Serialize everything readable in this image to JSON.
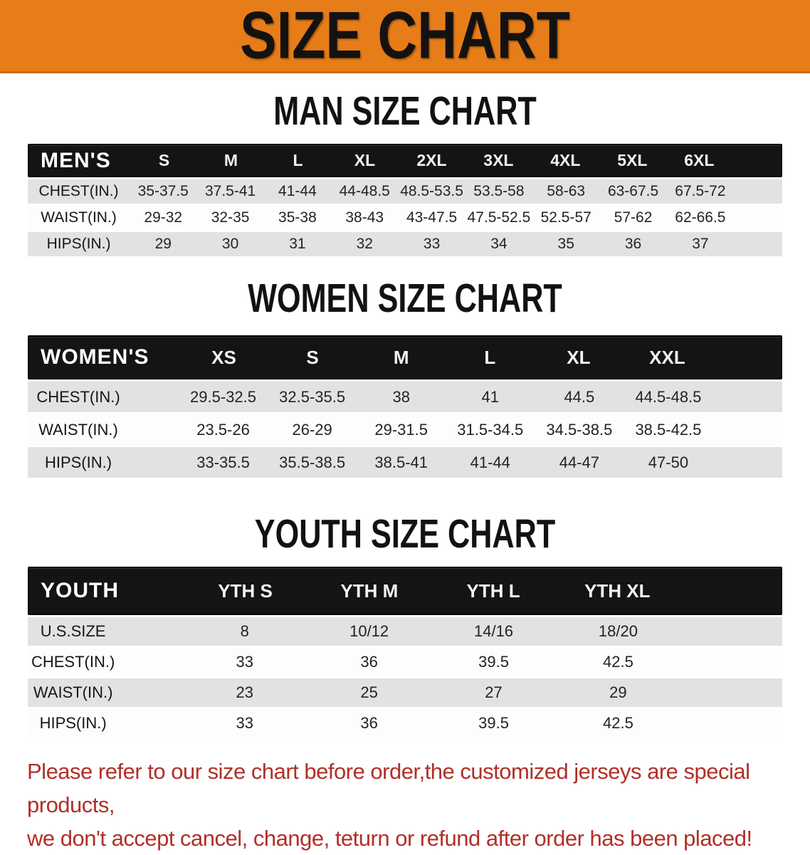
{
  "banner": {
    "title": "SIZE CHART"
  },
  "colors": {
    "banner_orange": "#e67d19",
    "table_header_black": "#151313",
    "row_gray": "#e2e2e2",
    "row_white": "#fdfdfd",
    "disclaimer_red": "#b03028"
  },
  "sections": [
    {
      "heading": "MAN SIZE CHART",
      "table": {
        "header_label": "MEN'S",
        "columns": [
          "S",
          "M",
          "L",
          "XL",
          "2XL",
          "3XL",
          "4XL",
          "5XL",
          "6XL"
        ],
        "rows": [
          {
            "label": "CHEST(IN.)",
            "values": [
              "35-37.5",
              "37.5-41",
              "41-44",
              "44-48.5",
              "48.5-53.5",
              "53.5-58",
              "58-63",
              "63-67.5",
              "67.5-72"
            ]
          },
          {
            "label": "WAIST(IN.)",
            "values": [
              "29-32",
              "32-35",
              "35-38",
              "38-43",
              "43-47.5",
              "47.5-52.5",
              "52.5-57",
              "57-62",
              "62-66.5"
            ]
          },
          {
            "label": "HIPS(IN.)",
            "values": [
              "29",
              "30",
              "31",
              "32",
              "33",
              "34",
              "35",
              "36",
              "37"
            ]
          }
        ]
      }
    },
    {
      "heading": "WOMEN SIZE CHART",
      "table": {
        "header_label": "WOMEN'S",
        "columns": [
          "XS",
          "S",
          "M",
          "L",
          "XL",
          "XXL"
        ],
        "rows": [
          {
            "label": "CHEST(IN.)",
            "values": [
              "29.5-32.5",
              "32.5-35.5",
              "38",
              "41",
              "44.5",
              "44.5-48.5"
            ]
          },
          {
            "label": "WAIST(IN.)",
            "values": [
              "23.5-26",
              "26-29",
              "29-31.5",
              "31.5-34.5",
              "34.5-38.5",
              "38.5-42.5"
            ]
          },
          {
            "label": "HIPS(IN.)",
            "values": [
              "33-35.5",
              "35.5-38.5",
              "38.5-41",
              "41-44",
              "44-47",
              "47-50"
            ]
          }
        ]
      }
    },
    {
      "heading": "YOUTH SIZE CHART",
      "table": {
        "header_label": "YOUTH",
        "columns": [
          "YTH S",
          "YTH M",
          "YTH L",
          "YTH XL"
        ],
        "rows": [
          {
            "label": "U.S.SIZE",
            "values": [
              "8",
              "10/12",
              "14/16",
              "18/20"
            ]
          },
          {
            "label": "CHEST(IN.)",
            "values": [
              "33",
              "36",
              "39.5",
              "42.5"
            ]
          },
          {
            "label": "WAIST(IN.)",
            "values": [
              "23",
              "25",
              "27",
              "29"
            ]
          },
          {
            "label": "HIPS(IN.)",
            "values": [
              "33",
              "36",
              "39.5",
              "42.5"
            ]
          }
        ]
      }
    }
  ],
  "footer": {
    "line1": "Please refer to our size chart before order,the customized jerseys are special products,",
    "line2": "we don't accept cancel, change, teturn or refund after order has been placed!"
  }
}
